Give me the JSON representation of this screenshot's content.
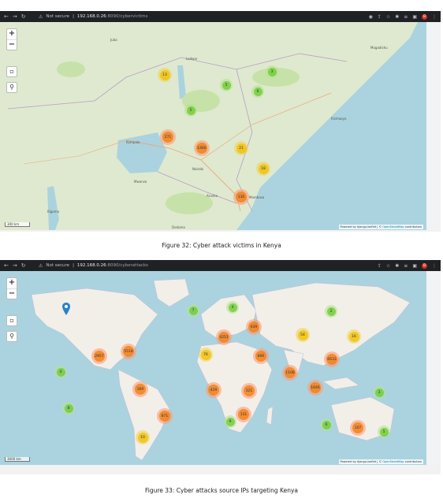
{
  "figure1": {
    "browser": {
      "security_label": "Not secure",
      "host": "192.168.0.26",
      "path": ":8090/cybervictims",
      "profile_initial": "B"
    },
    "map": {
      "scale_label": "300 km",
      "attribution_prefix": "Powered by django-leaflet | ©",
      "attribution_link": "OpenStreetMap",
      "attribution_suffix": "contributors",
      "place_labels": [
        "Kampala",
        "Nairobi",
        "Mombasa",
        "Kismaayo",
        "Arusha",
        "Dodoma",
        "Kigoma",
        "Mwanza",
        "Lodwar",
        "Juba",
        "Mogadishu"
      ],
      "clusters": [
        {
          "count": "13",
          "color": "y"
        },
        {
          "count": "5",
          "color": "g"
        },
        {
          "count": "3",
          "color": "g"
        },
        {
          "count": "6",
          "color": "g"
        },
        {
          "count": "5",
          "color": "g"
        },
        {
          "count": "271",
          "color": "o"
        },
        {
          "count": "1466",
          "color": "o"
        },
        {
          "count": "21",
          "color": "y"
        },
        {
          "count": "18",
          "color": "y"
        },
        {
          "count": "130",
          "color": "o"
        }
      ]
    },
    "caption": "Figure 32: Cyber attack victims in Kenya"
  },
  "figure2": {
    "browser": {
      "security_label": "Not secure",
      "host": "192.168.0.26",
      "path": ":8090/cyberattacks",
      "profile_initial": "B"
    },
    "map": {
      "scale_label": "3000 km",
      "attribution_prefix": "Powered by django-leaflet | ©",
      "attribution_link": "OpenStreetMap",
      "attribution_suffix": "contributors",
      "clusters": [
        {
          "count": "7",
          "color": "g"
        },
        {
          "count": "4",
          "color": "g"
        },
        {
          "count": "2",
          "color": "g"
        },
        {
          "count": "639",
          "color": "o"
        },
        {
          "count": "4251",
          "color": "o"
        },
        {
          "count": "54",
          "color": "y"
        },
        {
          "count": "16",
          "color": "y"
        },
        {
          "count": "2957",
          "color": "o"
        },
        {
          "count": "5518",
          "color": "o"
        },
        {
          "count": "76",
          "color": "y"
        },
        {
          "count": "890",
          "color": "o"
        },
        {
          "count": "6633",
          "color": "o"
        },
        {
          "count": "1108",
          "color": "o"
        },
        {
          "count": "4",
          "color": "g"
        },
        {
          "count": "1646",
          "color": "o"
        },
        {
          "count": "369",
          "color": "o"
        },
        {
          "count": "429",
          "color": "o"
        },
        {
          "count": "321",
          "color": "o"
        },
        {
          "count": "3",
          "color": "g"
        },
        {
          "count": "8",
          "color": "g"
        },
        {
          "count": "871",
          "color": "o"
        },
        {
          "count": "131",
          "color": "o"
        },
        {
          "count": "9",
          "color": "g"
        },
        {
          "count": "6",
          "color": "g"
        },
        {
          "count": "107",
          "color": "o"
        },
        {
          "count": "5",
          "color": "g"
        },
        {
          "count": "10",
          "color": "y"
        }
      ]
    },
    "caption": "Figure 33: Cyber attacks source IPs targeting Kenya"
  }
}
